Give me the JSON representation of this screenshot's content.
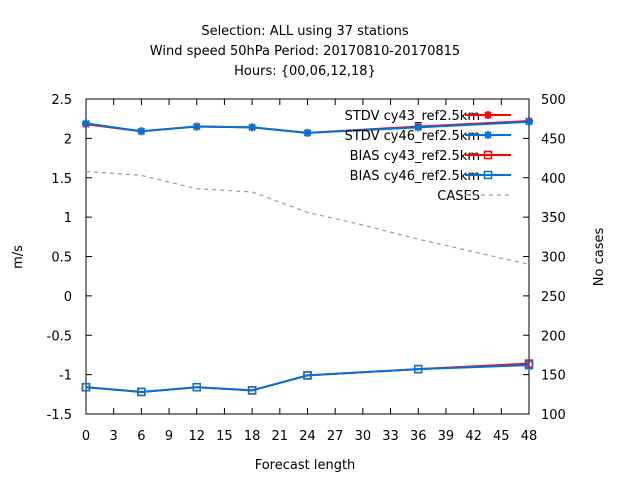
{
  "chart_data": {
    "type": "line",
    "title": [
      "Selection: ALL using     37 stations",
      "Wind speed 50hPa    Period: 20170810-20170815",
      "Hours: {00,06,12,18}"
    ],
    "xlabel": "Forecast length",
    "ylabel": "m/s",
    "y2label": "No cases",
    "xlim": [
      0,
      48
    ],
    "ylim": [
      -1.5,
      2.5
    ],
    "y2lim": [
      100,
      500
    ],
    "xticks": [
      "0",
      "3",
      "6",
      "9",
      "12",
      "15",
      "18",
      "21",
      "24",
      "27",
      "30",
      "33",
      "36",
      "39",
      "42",
      "45",
      "48"
    ],
    "yticks": [
      "2.5",
      "2",
      "1.5",
      "1",
      "0.5",
      "0",
      "-0.5",
      "-1",
      "-1.5"
    ],
    "y2ticks": [
      "500",
      "450",
      "400",
      "350",
      "300",
      "250",
      "200",
      "150",
      "100"
    ],
    "grid": false,
    "legend_position": "top-right",
    "x": [
      0,
      6,
      12,
      18,
      24,
      36,
      48
    ],
    "series": [
      {
        "name": "STDV cy43_ref2.5km",
        "axis": "y",
        "color": "#ff0000",
        "marker": "star",
        "values": [
          2.18,
          2.09,
          2.15,
          2.14,
          2.07,
          2.15,
          2.22
        ]
      },
      {
        "name": "STDV cy46_ref2.5km",
        "axis": "y",
        "color": "#0072d9",
        "marker": "star",
        "values": [
          2.19,
          2.09,
          2.15,
          2.14,
          2.07,
          2.14,
          2.21
        ]
      },
      {
        "name": "BIAS cy43_ref2.5km",
        "axis": "y",
        "color": "#ff0000",
        "marker": "square",
        "values": [
          -1.16,
          -1.22,
          -1.16,
          -1.2,
          -1.01,
          -0.93,
          -0.86
        ]
      },
      {
        "name": "BIAS cy46_ref2.5km",
        "axis": "y",
        "color": "#0072d9",
        "marker": "square",
        "values": [
          -1.16,
          -1.22,
          -1.16,
          -1.2,
          -1.01,
          -0.93,
          -0.88
        ]
      },
      {
        "name": "CASES",
        "axis": "y2",
        "color": "#999999",
        "marker": "none",
        "dashed": true,
        "x": [
          0,
          6,
          12,
          18,
          24,
          30,
          36,
          42,
          48
        ],
        "values": [
          408,
          403,
          386,
          382,
          356,
          340,
          322,
          306,
          290
        ]
      }
    ]
  }
}
